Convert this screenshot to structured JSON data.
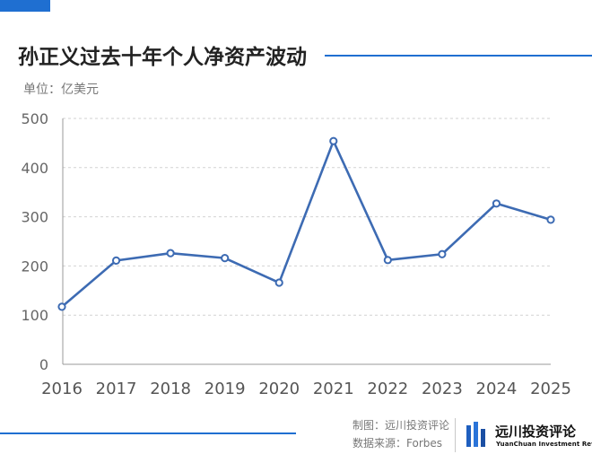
{
  "header": {
    "title": "孙正义过去十年个人净资产波动",
    "unit": "单位：亿美元"
  },
  "chart_data": {
    "type": "line",
    "title": "孙正义过去十年个人净资产波动",
    "ylabel": "单位：亿美元",
    "xlabel": "",
    "categories": [
      "2016",
      "2017",
      "2018",
      "2019",
      "2020",
      "2021",
      "2022",
      "2023",
      "2024",
      "2025"
    ],
    "series": [
      {
        "name": "个人净资产",
        "values": [
          117,
          211,
          226,
          216,
          166,
          454,
          212,
          224,
          327,
          294
        ]
      }
    ],
    "ylim": [
      0,
      500
    ],
    "yticks": [
      0,
      100,
      200,
      300,
      400,
      500
    ],
    "grid": true,
    "legend": "none",
    "color": "#3d6bb3"
  },
  "footer": {
    "made_by": "制图：远川投资评论",
    "source": "数据来源：Forbes",
    "brand_cn": "远川投资评论",
    "brand_en": "YuanChuan Investment Review",
    "brand_logo_icon": "yuanchuan-logo-icon"
  }
}
